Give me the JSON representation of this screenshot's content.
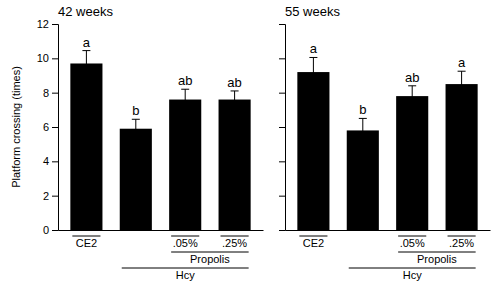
{
  "chart_data": [
    {
      "type": "bar",
      "title": "42 weeks",
      "ylabel": "Platform crossing (times)",
      "categories": [
        "CE2",
        null,
        ".05%",
        ".25%"
      ],
      "values": [
        9.7,
        5.9,
        7.6,
        7.6
      ],
      "errors": [
        0.75,
        0.55,
        0.6,
        0.5
      ],
      "letters": [
        "a",
        "b",
        "ab",
        "ab"
      ],
      "category_groups": [
        {
          "label": "Propolis",
          "span": [
            2,
            3
          ]
        },
        {
          "label": "Hcy",
          "span": [
            1,
            3
          ]
        }
      ],
      "color": "#000000",
      "ylim": [
        0,
        12
      ],
      "yticks": [
        0,
        2,
        4,
        6,
        8,
        10,
        12
      ],
      "tick_labels": true
    },
    {
      "type": "bar",
      "title": "55 weeks",
      "categories": [
        "CE2",
        null,
        ".05%",
        ".25%"
      ],
      "values": [
        9.2,
        5.8,
        7.8,
        8.5
      ],
      "errors": [
        0.85,
        0.7,
        0.6,
        0.75
      ],
      "letters": [
        "a",
        "b",
        "ab",
        "a"
      ],
      "category_groups": [
        {
          "label": "Propolis",
          "span": [
            2,
            3
          ]
        },
        {
          "label": "Hcy",
          "span": [
            1,
            3
          ]
        }
      ],
      "color": "#000000",
      "ylim": [
        0,
        12
      ],
      "yticks": [
        0,
        2,
        4,
        6,
        8,
        10,
        12
      ],
      "tick_labels": "x"
    }
  ]
}
